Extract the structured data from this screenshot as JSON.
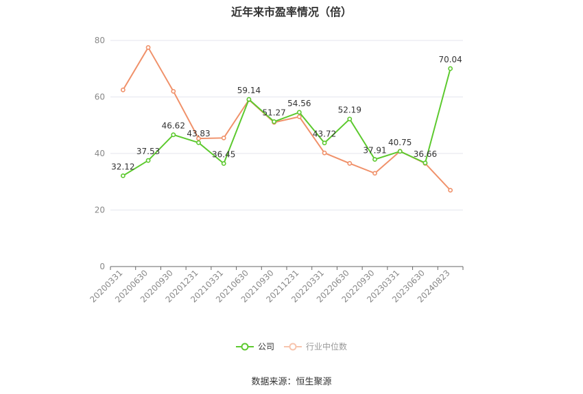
{
  "chart_data": {
    "type": "line",
    "title": "近年来市盈率情况（倍）",
    "categories": [
      "20200331",
      "20200630",
      "20200930",
      "20201231",
      "20210331",
      "20210630",
      "20210930",
      "20211231",
      "20220331",
      "20220630",
      "20220930",
      "20230331",
      "20230630",
      "20240823"
    ],
    "series": [
      {
        "name": "公司",
        "color": "#5cc92e",
        "values": [
          32.12,
          37.53,
          46.62,
          43.83,
          36.45,
          59.14,
          51.27,
          54.56,
          43.72,
          52.19,
          37.91,
          40.75,
          36.66,
          70.04
        ],
        "labels": [
          "32.12",
          "37.53",
          "46.62",
          "43.83",
          "36.45",
          "59.14",
          "51.27",
          "54.56",
          "43.72",
          "52.19",
          "37.91",
          "40.75",
          "36.66",
          "70.04"
        ]
      },
      {
        "name": "行业中位数",
        "color": "#f0916a",
        "values": [
          62.5,
          77.5,
          62.0,
          45.3,
          45.5,
          59.0,
          51.0,
          53.0,
          40.2,
          36.5,
          33.0,
          40.8,
          36.5,
          27.0
        ]
      }
    ],
    "ylim": [
      0,
      80
    ],
    "yticks": [
      0,
      20,
      40,
      60,
      80
    ],
    "grid": true,
    "legend": "bottom"
  },
  "legend": {
    "company": "公司",
    "industry": "行业中位数"
  },
  "source": "数据来源：恒生聚源"
}
